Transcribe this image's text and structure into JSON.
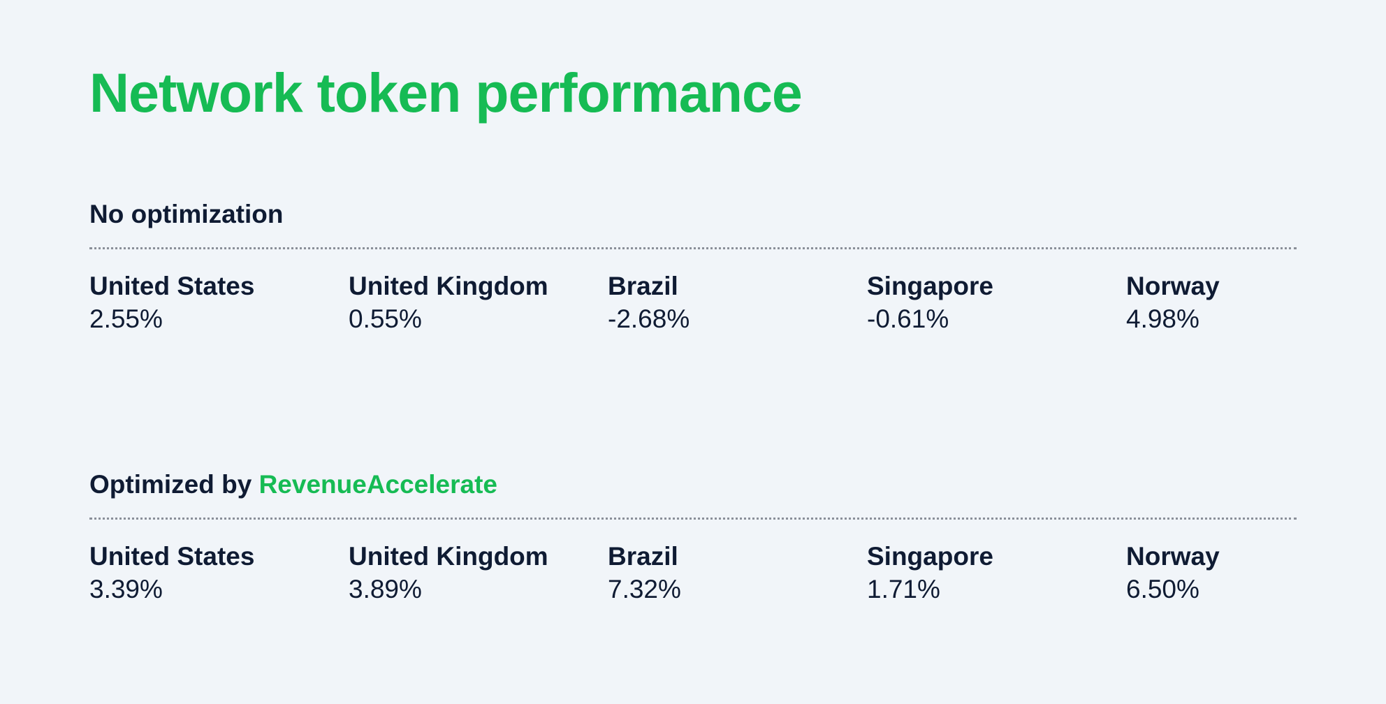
{
  "title": "Network token performance",
  "colors": {
    "accent": "#16bb54",
    "text": "#0f1b33",
    "background": "#f1f5f9",
    "divider": "#8a8f99"
  },
  "sections": [
    {
      "heading_prefix": "No optimization",
      "heading_accent": "",
      "countries": [
        {
          "name": "United States",
          "value": "2.55%"
        },
        {
          "name": "United Kingdom",
          "value": "0.55%"
        },
        {
          "name": "Brazil",
          "value": "-2.68%"
        },
        {
          "name": "Singapore",
          "value": "-0.61%"
        },
        {
          "name": "Norway",
          "value": "4.98%"
        }
      ]
    },
    {
      "heading_prefix": "Optimized by ",
      "heading_accent": "RevenueAccelerate",
      "countries": [
        {
          "name": "United States",
          "value": "3.39%"
        },
        {
          "name": "United Kingdom",
          "value": "3.89%"
        },
        {
          "name": "Brazil",
          "value": "7.32%"
        },
        {
          "name": "Singapore",
          "value": "1.71%"
        },
        {
          "name": "Norway",
          "value": "6.50%"
        }
      ]
    }
  ]
}
